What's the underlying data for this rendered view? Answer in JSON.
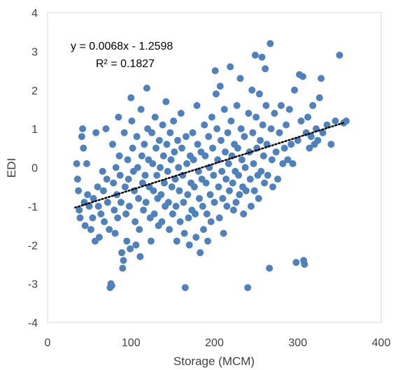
{
  "chart_data": {
    "type": "scatter",
    "title": "",
    "xlabel": "Storage (MCM)",
    "ylabel": "EDI",
    "xlim": [
      0,
      400
    ],
    "ylim": [
      -4,
      4
    ],
    "xticks": [
      "0",
      "100",
      "200",
      "300",
      "400"
    ],
    "yticks": [
      "4",
      "3",
      "2",
      "1",
      "0",
      "-1",
      "-2",
      "-3",
      "-4"
    ],
    "grid": false,
    "legend": "none",
    "marker_color": "#4f81bd",
    "trendline": {
      "style": "dotted",
      "color": "#000000",
      "equation": "y = 0.0068x - 1.2598",
      "r_squared": "R² = 0.1827",
      "slope": 0.0068,
      "intercept": -1.2598,
      "x_range": [
        33,
        355
      ]
    },
    "points": [
      [
        35,
        0.1
      ],
      [
        36,
        -0.3
      ],
      [
        37,
        -0.6
      ],
      [
        38,
        -1.1
      ],
      [
        39,
        -1.3
      ],
      [
        41,
        0.8
      ],
      [
        42,
        1.0
      ],
      [
        43,
        0.5
      ],
      [
        44,
        -0.9
      ],
      [
        45,
        -1.5
      ],
      [
        47,
        0.1
      ],
      [
        48,
        -0.7
      ],
      [
        50,
        -1.0
      ],
      [
        52,
        -1.6
      ],
      [
        54,
        -1.3
      ],
      [
        55,
        -0.8
      ],
      [
        57,
        -1.9
      ],
      [
        58,
        0.9
      ],
      [
        60,
        -0.5
      ],
      [
        61,
        -1.0
      ],
      [
        62,
        -1.8
      ],
      [
        64,
        -1.2
      ],
      [
        66,
        -0.1
      ],
      [
        67,
        -0.6
      ],
      [
        68,
        -1.4
      ],
      [
        70,
        1.0
      ],
      [
        71,
        -0.3
      ],
      [
        72,
        -0.9
      ],
      [
        74,
        -1.6
      ],
      [
        75,
        -3.1
      ],
      [
        76,
        -3.0
      ],
      [
        77,
        -3.05
      ],
      [
        78,
        0.6
      ],
      [
        79,
        -0.4
      ],
      [
        80,
        -1.1
      ],
      [
        81,
        -1.7
      ],
      [
        82,
        0.0
      ],
      [
        83,
        -0.7
      ],
      [
        84,
        -1.3
      ],
      [
        85,
        1.3
      ],
      [
        86,
        0.3
      ],
      [
        87,
        -0.2
      ],
      [
        88,
        -0.9
      ],
      [
        89,
        -2.2
      ],
      [
        90,
        -2.6
      ],
      [
        91,
        -2.4
      ],
      [
        92,
        0.9
      ],
      [
        93,
        -0.5
      ],
      [
        94,
        -1.2
      ],
      [
        95,
        -1.9
      ],
      [
        96,
        0.2
      ],
      [
        97,
        -0.3
      ],
      [
        98,
        -1.0
      ],
      [
        99,
        -2.1
      ],
      [
        100,
        1.8
      ],
      [
        101,
        1.2
      ],
      [
        102,
        0.5
      ],
      [
        103,
        -0.1
      ],
      [
        104,
        -0.6
      ],
      [
        105,
        -1.4
      ],
      [
        106,
        -2.0
      ],
      [
        107,
        0.8
      ],
      [
        108,
        0.0
      ],
      [
        109,
        -0.8
      ],
      [
        110,
        -1.6
      ],
      [
        111,
        -2.3
      ],
      [
        112,
        1.5
      ],
      [
        113,
        0.3
      ],
      [
        114,
        -0.4
      ],
      [
        115,
        -1.1
      ],
      [
        116,
        0.6
      ],
      [
        117,
        -0.2
      ],
      [
        118,
        -0.9
      ],
      [
        119,
        2.05
      ],
      [
        120,
        1.0
      ],
      [
        121,
        0.2
      ],
      [
        122,
        -0.5
      ],
      [
        123,
        -1.3
      ],
      [
        124,
        -1.9
      ],
      [
        125,
        0.9
      ],
      [
        126,
        0.1
      ],
      [
        127,
        -0.6
      ],
      [
        128,
        -1.2
      ],
      [
        129,
        1.3
      ],
      [
        130,
        0.5
      ],
      [
        131,
        -0.2
      ],
      [
        132,
        -0.8
      ],
      [
        133,
        -1.5
      ],
      [
        134,
        0.7
      ],
      [
        135,
        0.0
      ],
      [
        136,
        -0.7
      ],
      [
        137,
        -1.4
      ],
      [
        138,
        1.1
      ],
      [
        139,
        0.3
      ],
      [
        140,
        -0.4
      ],
      [
        141,
        -1.0
      ],
      [
        142,
        1.7
      ],
      [
        143,
        0.6
      ],
      [
        144,
        -0.1
      ],
      [
        145,
        -0.9
      ],
      [
        146,
        -1.6
      ],
      [
        147,
        0.9
      ],
      [
        148,
        0.2
      ],
      [
        149,
        -0.5
      ],
      [
        150,
        -1.2
      ],
      [
        151,
        1.2
      ],
      [
        152,
        0.4
      ],
      [
        153,
        -0.3
      ],
      [
        154,
        -1.0
      ],
      [
        155,
        -1.9
      ],
      [
        156,
        0.7
      ],
      [
        157,
        0.0
      ],
      [
        158,
        -0.6
      ],
      [
        159,
        -1.4
      ],
      [
        160,
        1.4
      ],
      [
        161,
        0.5
      ],
      [
        162,
        -0.2
      ],
      [
        163,
        -0.9
      ],
      [
        164,
        -1.7
      ],
      [
        165,
        -3.1
      ],
      [
        166,
        0.8
      ],
      [
        167,
        0.1
      ],
      [
        168,
        -0.7
      ],
      [
        169,
        -1.3
      ],
      [
        170,
        -2.0
      ],
      [
        171,
        0.3
      ],
      [
        172,
        -0.4
      ],
      [
        173,
        -1.1
      ],
      [
        174,
        0.9
      ],
      [
        175,
        0.2
      ],
      [
        176,
        -0.5
      ],
      [
        177,
        -1.2
      ],
      [
        178,
        -1.8
      ],
      [
        179,
        1.6
      ],
      [
        180,
        0.6
      ],
      [
        181,
        -0.1
      ],
      [
        182,
        -0.8
      ],
      [
        183,
        -2.2
      ],
      [
        184,
        0.4
      ],
      [
        185,
        -0.3
      ],
      [
        186,
        -1.0
      ],
      [
        187,
        -1.6
      ],
      [
        188,
        1.1
      ],
      [
        189,
        0.3
      ],
      [
        190,
        -0.4
      ],
      [
        191,
        -1.2
      ],
      [
        192,
        -1.9
      ],
      [
        193,
        0.8
      ],
      [
        194,
        0.0
      ],
      [
        195,
        -0.7
      ],
      [
        196,
        -1.4
      ],
      [
        197,
        1.3
      ],
      [
        198,
        0.5
      ],
      [
        199,
        -0.2
      ],
      [
        200,
        -0.9
      ],
      [
        201,
        2.5
      ],
      [
        202,
        1.9
      ],
      [
        203,
        1.0
      ],
      [
        204,
        0.2
      ],
      [
        205,
        -0.5
      ],
      [
        206,
        -1.3
      ],
      [
        207,
        2.1
      ],
      [
        208,
        0.7
      ],
      [
        209,
        -0.1
      ],
      [
        210,
        -0.8
      ],
      [
        211,
        -1.7
      ],
      [
        212,
        1.5
      ],
      [
        213,
        0.4
      ],
      [
        214,
        -0.3
      ],
      [
        215,
        -1.0
      ],
      [
        216,
        0.9
      ],
      [
        217,
        0.1
      ],
      [
        218,
        -0.6
      ],
      [
        219,
        2.6
      ],
      [
        220,
        1.2
      ],
      [
        221,
        0.3
      ],
      [
        222,
        -0.4
      ],
      [
        223,
        -1.1
      ],
      [
        224,
        0.6
      ],
      [
        225,
        -0.1
      ],
      [
        226,
        -0.9
      ],
      [
        227,
        1.6
      ],
      [
        228,
        0.5
      ],
      [
        229,
        -0.2
      ],
      [
        230,
        -0.7
      ],
      [
        231,
        2.3
      ],
      [
        232,
        1.0
      ],
      [
        233,
        0.2
      ],
      [
        234,
        -0.5
      ],
      [
        235,
        -1.2
      ],
      [
        236,
        0.8
      ],
      [
        237,
        0.0
      ],
      [
        238,
        -0.6
      ],
      [
        240,
        -3.1
      ],
      [
        241,
        1.4
      ],
      [
        242,
        0.4
      ],
      [
        243,
        -0.3
      ],
      [
        244,
        -1.0
      ],
      [
        245,
        2.0
      ],
      [
        246,
        0.9
      ],
      [
        247,
        0.1
      ],
      [
        248,
        -0.6
      ],
      [
        249,
        2.9
      ],
      [
        250,
        1.3
      ],
      [
        251,
        0.5
      ],
      [
        252,
        -0.2
      ],
      [
        253,
        -0.8
      ],
      [
        254,
        1.9
      ],
      [
        255,
        0.7
      ],
      [
        256,
        -0.1
      ],
      [
        257,
        2.85
      ],
      [
        258,
        1.1
      ],
      [
        259,
        0.3
      ],
      [
        260,
        -0.4
      ],
      [
        261,
        2.55
      ],
      [
        262,
        1.6
      ],
      [
        263,
        0.6
      ],
      [
        264,
        -0.2
      ],
      [
        266,
        -2.6
      ],
      [
        267,
        3.2
      ],
      [
        268,
        1.0
      ],
      [
        269,
        0.2
      ],
      [
        270,
        -0.5
      ],
      [
        272,
        1.4
      ],
      [
        274,
        0.4
      ],
      [
        276,
        -0.3
      ],
      [
        278,
        0.9
      ],
      [
        280,
        1.6
      ],
      [
        282,
        0.1
      ],
      [
        284,
        0.5
      ],
      [
        286,
        1.1
      ],
      [
        288,
        0.2
      ],
      [
        290,
        1.5
      ],
      [
        292,
        0.6
      ],
      [
        294,
        0.1
      ],
      [
        296,
        2.0
      ],
      [
        298,
        -2.45
      ],
      [
        300,
        0.7
      ],
      [
        302,
        2.4
      ],
      [
        304,
        1.2
      ],
      [
        306,
        2.35
      ],
      [
        307,
        -2.4
      ],
      [
        308,
        -2.5
      ],
      [
        310,
        0.9
      ],
      [
        312,
        1.3
      ],
      [
        314,
        0.5
      ],
      [
        316,
        0.8
      ],
      [
        318,
        1.6
      ],
      [
        320,
        0.6
      ],
      [
        322,
        1.0
      ],
      [
        324,
        0.7
      ],
      [
        326,
        1.8
      ],
      [
        328,
        2.3
      ],
      [
        330,
        0.9
      ],
      [
        335,
        1.1
      ],
      [
        340,
        0.6
      ],
      [
        345,
        1.2
      ],
      [
        350,
        2.9
      ],
      [
        355,
        1.15
      ],
      [
        358,
        1.2
      ]
    ]
  }
}
